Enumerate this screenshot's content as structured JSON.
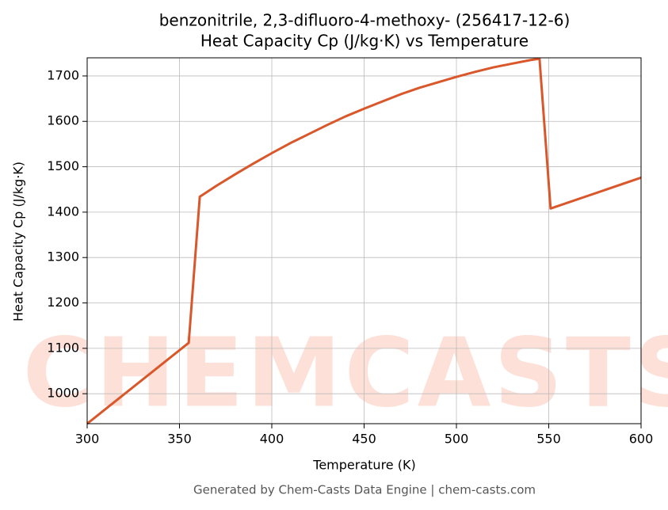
{
  "chart_data": {
    "type": "line",
    "title": "benzonitrile, 2,3-difluoro-4-methoxy- (256417-12-6)",
    "subtitle": "Heat Capacity Cp (J/kg·K) vs Temperature",
    "xlabel": "Temperature (K)",
    "ylabel": "Heat Capacity Cp (J/kg·K)",
    "footer": "Generated by Chem-Casts Data Engine | chem-casts.com",
    "watermark": "CHEMCASTS",
    "x": [
      300,
      355,
      361,
      370,
      380,
      390,
      400,
      410,
      420,
      430,
      440,
      450,
      460,
      470,
      480,
      490,
      500,
      510,
      520,
      530,
      540,
      545,
      551,
      600
    ],
    "series": [
      {
        "name": "Cp",
        "color": "#d9572a",
        "values": [
          934,
          1112,
          1434,
          1458,
          1483,
          1507,
          1530,
          1552,
          1572,
          1592,
          1611,
          1628,
          1644,
          1660,
          1674,
          1686,
          1698,
          1709,
          1719,
          1727,
          1735,
          1738,
          1408,
          1476
        ]
      }
    ],
    "xlim": [
      300,
      600
    ],
    "ylim": [
      934,
      1740
    ],
    "xticks": [
      300,
      350,
      400,
      450,
      500,
      550,
      600
    ],
    "yticks": [
      1000,
      1100,
      1200,
      1300,
      1400,
      1500,
      1600,
      1700
    ],
    "grid": true
  }
}
